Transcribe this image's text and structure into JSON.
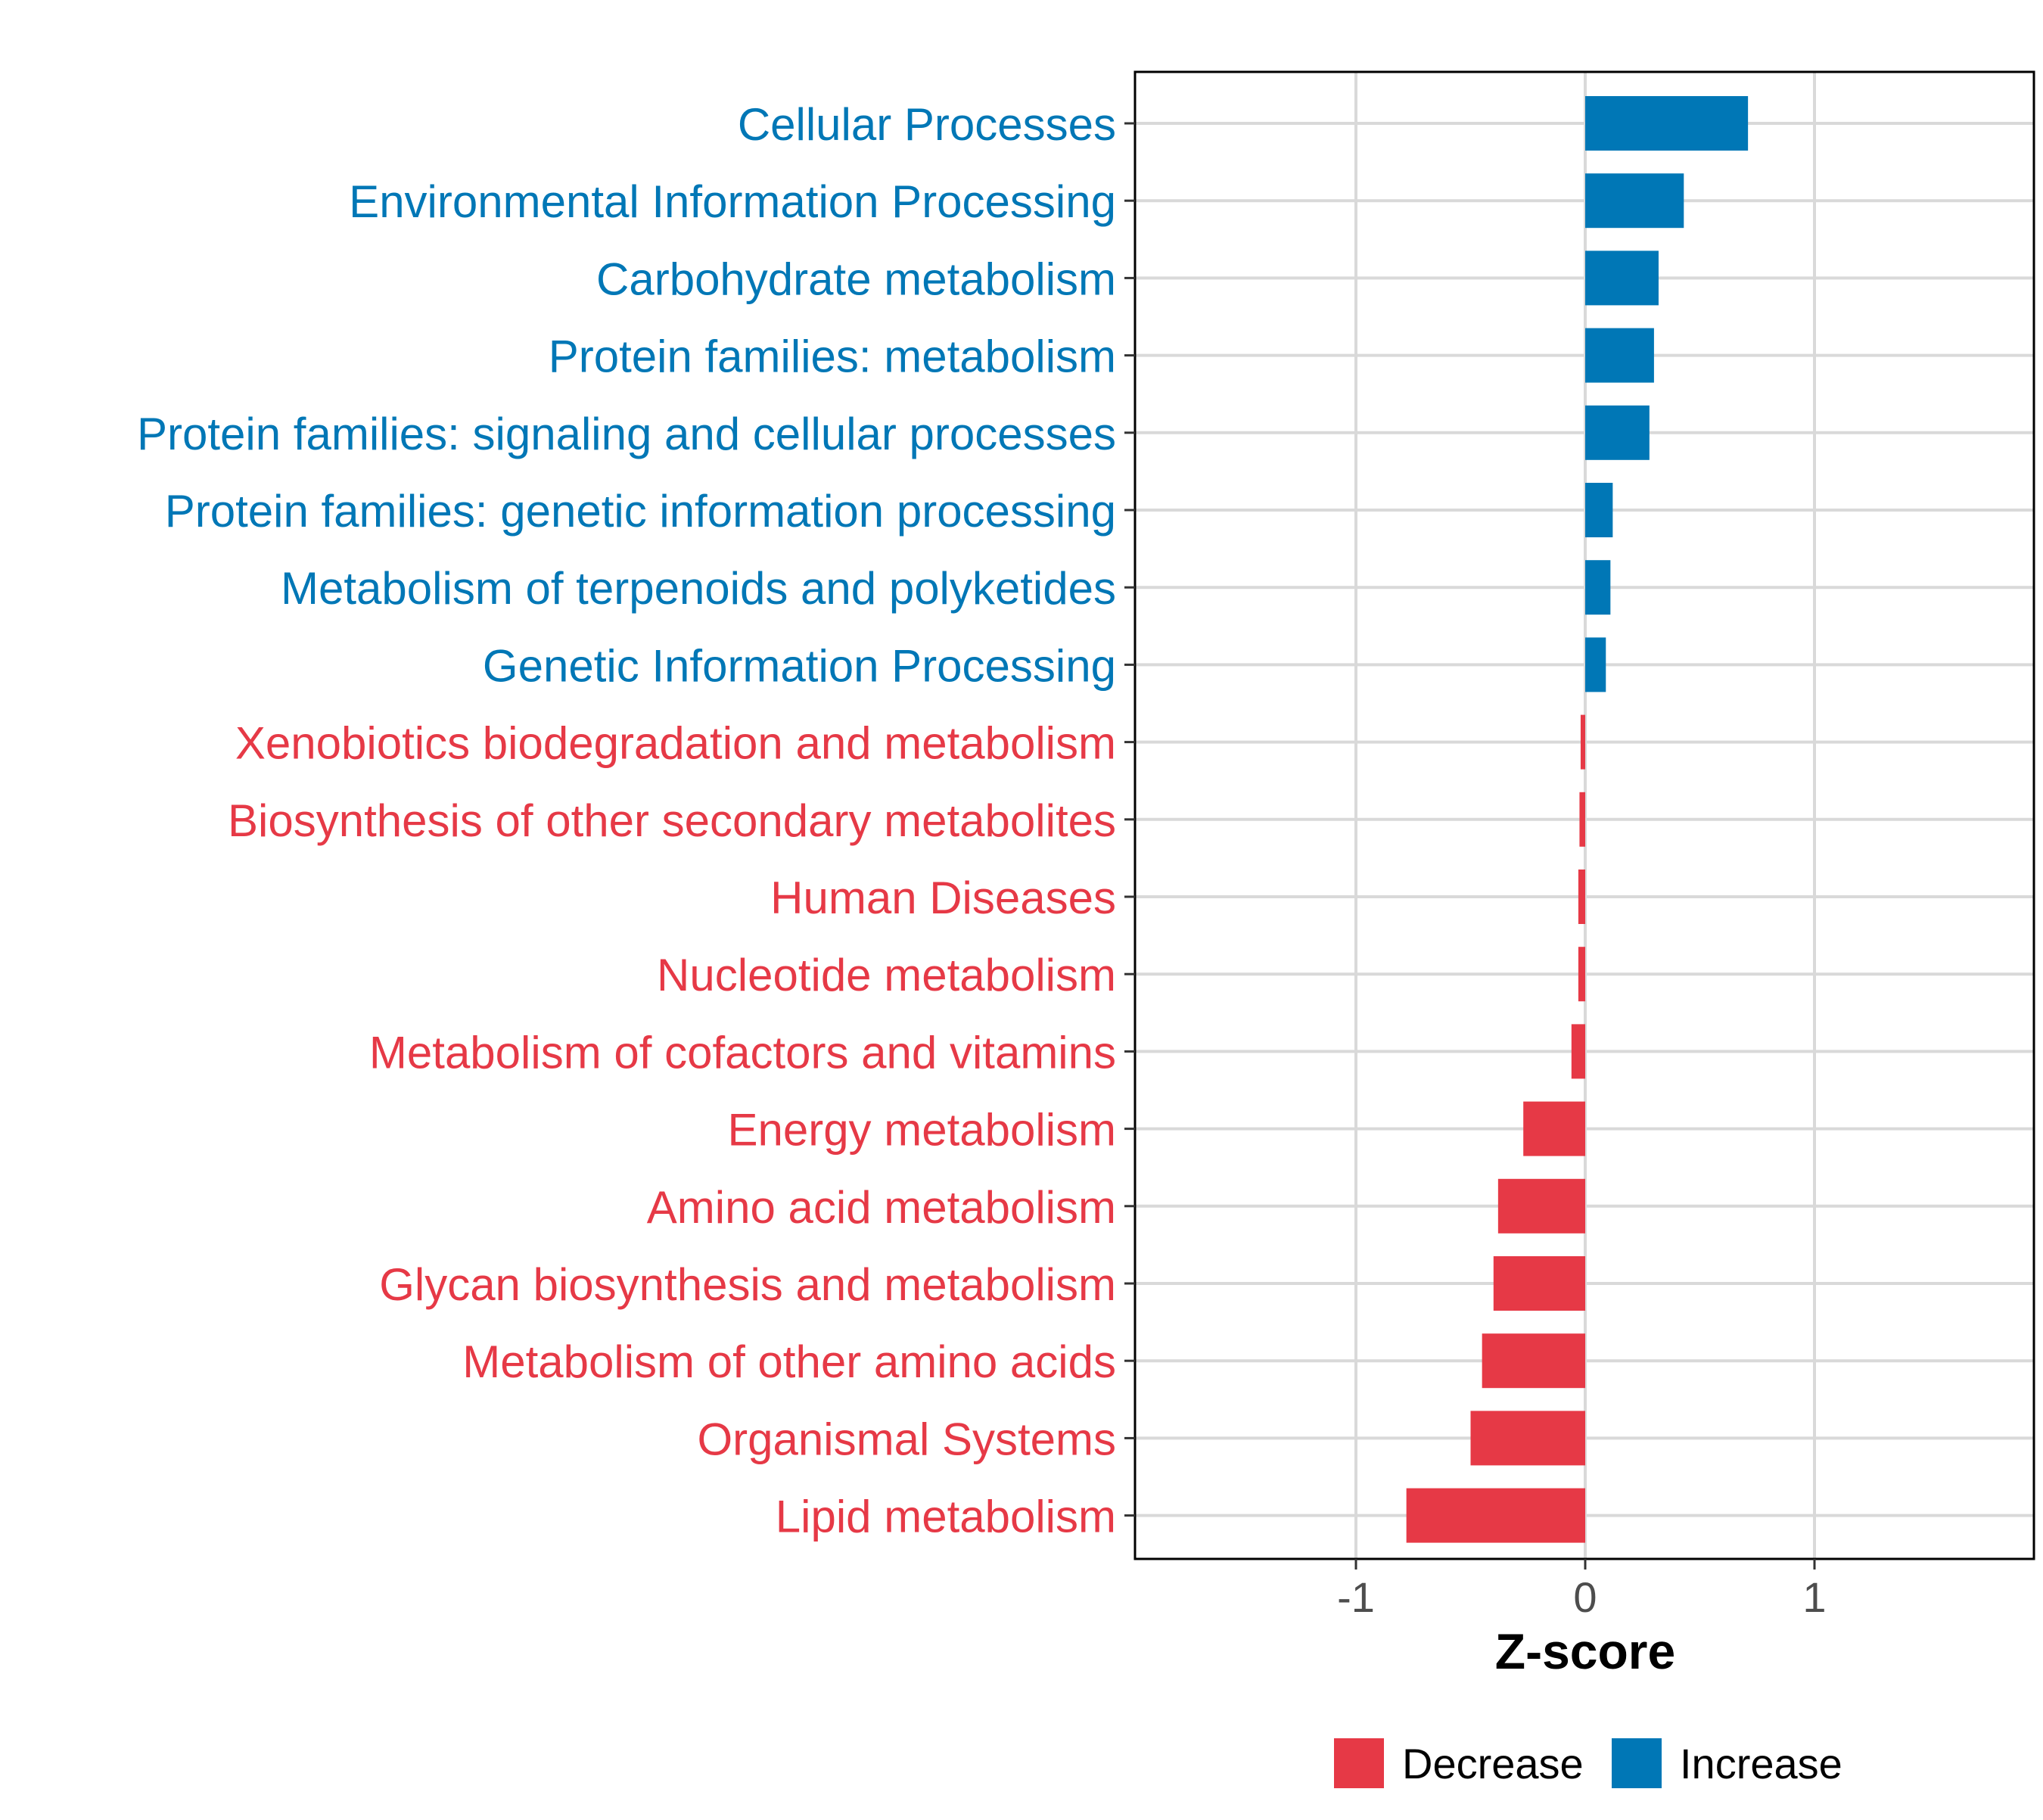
{
  "chart_data": {
    "type": "bar",
    "orientation": "horizontal",
    "xlabel": "Z-score",
    "ylabel": "",
    "xlim": [
      -1.95,
      1.95
    ],
    "xticks": [
      -1,
      0,
      1
    ],
    "grid": true,
    "legend_position": "bottom",
    "series": [
      {
        "name": "Decrease",
        "color": "#e63946"
      },
      {
        "name": "Increase",
        "color": "#0077b6"
      }
    ],
    "categories": [
      "Cellular Processes",
      "Environmental Information Processing",
      "Carbohydrate metabolism",
      "Protein families: metabolism",
      "Protein families: signaling and cellular processes",
      "Protein families: genetic information processing",
      "Metabolism of terpenoids and polyketides",
      "Genetic Information Processing",
      "Xenobiotics biodegradation and metabolism",
      "Biosynthesis of other secondary metabolites",
      "Human Diseases",
      "Nucleotide metabolism",
      "Metabolism of cofactors and vitamins",
      "Energy metabolism",
      "Amino acid metabolism",
      "Glycan biosynthesis and metabolism",
      "Metabolism of other amino acids",
      "Organismal Systems",
      "Lipid metabolism"
    ],
    "values": [
      0.71,
      0.43,
      0.32,
      0.3,
      0.28,
      0.12,
      0.11,
      0.09,
      -0.02,
      -0.025,
      -0.03,
      -0.03,
      -0.06,
      -0.27,
      -0.38,
      -0.4,
      -0.45,
      -0.5,
      -0.78
    ],
    "groups": [
      "Increase",
      "Increase",
      "Increase",
      "Increase",
      "Increase",
      "Increase",
      "Increase",
      "Increase",
      "Decrease",
      "Decrease",
      "Decrease",
      "Decrease",
      "Decrease",
      "Decrease",
      "Decrease",
      "Decrease",
      "Decrease",
      "Decrease",
      "Decrease"
    ]
  }
}
